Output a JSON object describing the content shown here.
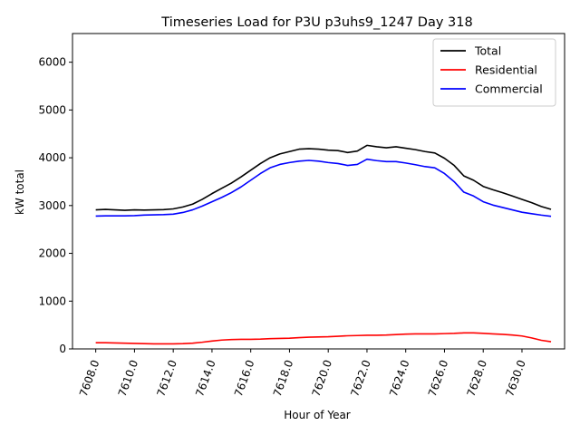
{
  "chart_data": {
    "type": "line",
    "title": "Timeseries Load for P3U p3uhs9_1247  Day 318",
    "xlabel": "Hour of Year",
    "ylabel": "kW total",
    "xlim": [
      7606.8,
      7632.2
    ],
    "ylim": [
      0,
      6600
    ],
    "xticks": [
      7608,
      7610,
      7612,
      7614,
      7616,
      7618,
      7620,
      7622,
      7624,
      7626,
      7628,
      7630
    ],
    "xtick_labels": [
      "7608.0",
      "7610.0",
      "7612.0",
      "7614.0",
      "7616.0",
      "7618.0",
      "7620.0",
      "7622.0",
      "7624.0",
      "7626.0",
      "7628.0",
      "7630.0"
    ],
    "yticks": [
      0,
      1000,
      2000,
      3000,
      4000,
      5000,
      6000
    ],
    "ytick_labels": [
      "0",
      "1000",
      "2000",
      "3000",
      "4000",
      "5000",
      "6000"
    ],
    "legend_position": "top-right",
    "x": [
      7608,
      7608.5,
      7609,
      7609.5,
      7610,
      7610.5,
      7611,
      7611.5,
      7612,
      7612.5,
      7613,
      7613.5,
      7614,
      7614.5,
      7615,
      7615.5,
      7616,
      7616.5,
      7617,
      7617.5,
      7618,
      7618.5,
      7619,
      7619.5,
      7620,
      7620.5,
      7621,
      7621.5,
      7622,
      7622.5,
      7623,
      7623.5,
      7624,
      7624.5,
      7625,
      7625.5,
      7626,
      7626.5,
      7627,
      7627.5,
      7628,
      7628.5,
      7629,
      7629.5,
      7630,
      7630.5,
      7631,
      7631.5
    ],
    "series": [
      {
        "name": "Total",
        "color": "#000000",
        "values": [
          2910,
          2920,
          2910,
          2900,
          2910,
          2905,
          2910,
          2915,
          2930,
          2970,
          3030,
          3130,
          3250,
          3360,
          3470,
          3600,
          3740,
          3880,
          4000,
          4080,
          4130,
          4180,
          4190,
          4180,
          4160,
          4150,
          4110,
          4140,
          4260,
          4230,
          4210,
          4230,
          4200,
          4170,
          4130,
          4100,
          3990,
          3840,
          3620,
          3530,
          3400,
          3330,
          3270,
          3200,
          3130,
          3060,
          2980,
          2920
        ]
      },
      {
        "name": "Residential",
        "color": "#ff0000",
        "values": [
          130,
          130,
          125,
          120,
          115,
          110,
          105,
          105,
          105,
          110,
          120,
          140,
          165,
          185,
          195,
          200,
          200,
          205,
          215,
          220,
          225,
          235,
          245,
          250,
          255,
          265,
          275,
          280,
          285,
          285,
          290,
          300,
          310,
          315,
          315,
          315,
          320,
          325,
          335,
          335,
          325,
          315,
          305,
          290,
          270,
          230,
          180,
          150
        ]
      },
      {
        "name": "Commercial",
        "color": "#0000ff",
        "values": [
          2780,
          2785,
          2785,
          2785,
          2790,
          2800,
          2805,
          2810,
          2820,
          2855,
          2910,
          2990,
          3080,
          3170,
          3270,
          3390,
          3530,
          3670,
          3790,
          3860,
          3900,
          3930,
          3945,
          3930,
          3900,
          3880,
          3840,
          3860,
          3970,
          3940,
          3920,
          3920,
          3890,
          3855,
          3815,
          3790,
          3670,
          3500,
          3280,
          3200,
          3080,
          3010,
          2960,
          2910,
          2860,
          2830,
          2800,
          2775
        ]
      }
    ]
  }
}
